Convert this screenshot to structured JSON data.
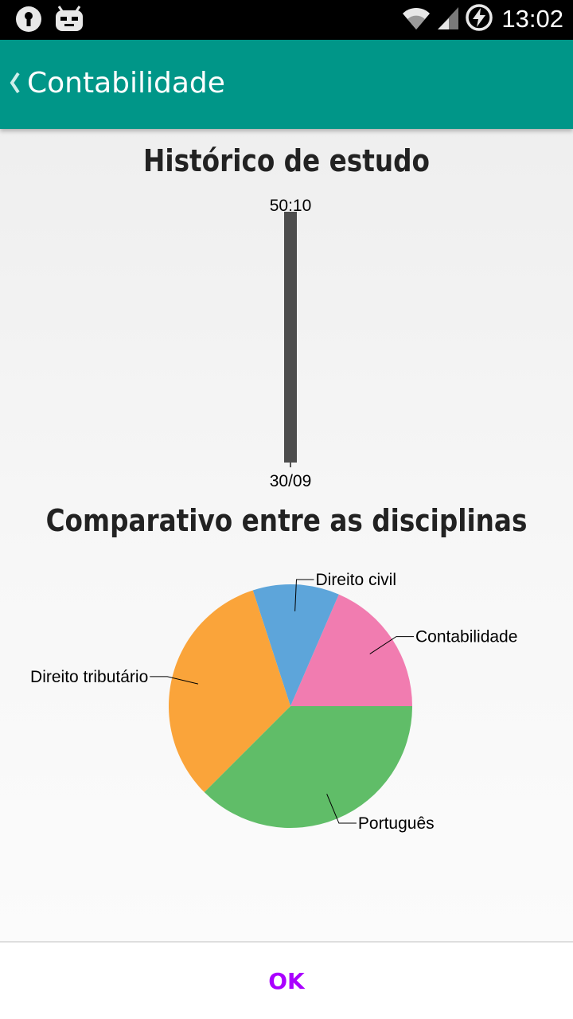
{
  "status_bar": {
    "time": "13:02",
    "icons": [
      "keyhole-notification-icon",
      "cyanogen-robot-icon",
      "wifi-icon",
      "signal-icon",
      "battery-charging-icon"
    ]
  },
  "app_bar": {
    "title": "Contabilidade",
    "background": "#009688",
    "back_icon": "chevron-left-icon"
  },
  "history": {
    "title": "Histórico de estudo"
  },
  "comparison": {
    "title": "Comparativo entre as disciplinas"
  },
  "chart_data": [
    {
      "type": "bar",
      "title": "Histórico de estudo",
      "categories": [
        "30/09"
      ],
      "values": [
        "50:10"
      ],
      "values_minutes": [
        50.17
      ],
      "ylim": [
        0,
        50.17
      ],
      "bar_color": "#4d4d4d",
      "grid": false,
      "legend": "none"
    },
    {
      "type": "pie",
      "title": "Comparativo entre as disciplinas",
      "slices": [
        {
          "label": "Contabilidade",
          "value": 18.5,
          "color": "#f17cb0"
        },
        {
          "label": "Direito civil",
          "value": 11.5,
          "color": "#5da5da"
        },
        {
          "label": "Direito tributário",
          "value": 32.5,
          "color": "#faa43a"
        },
        {
          "label": "Português",
          "value": 37.5,
          "color": "#60bd68"
        }
      ],
      "legend": "none"
    }
  ],
  "actions": {
    "ok_label": "OK",
    "ok_color": "#aa00ff"
  }
}
